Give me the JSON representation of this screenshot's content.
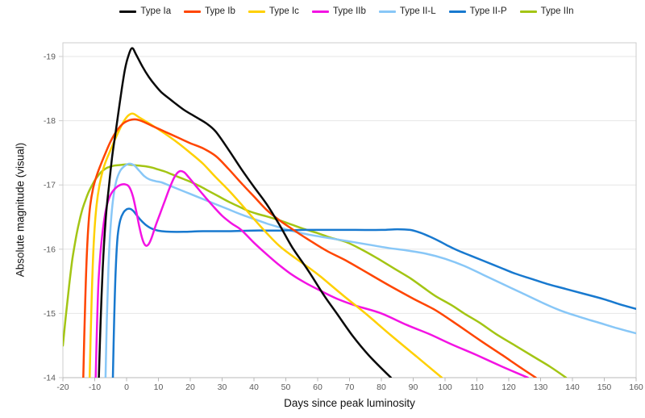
{
  "chart_data": {
    "type": "line",
    "title": "",
    "xlabel": "Days since peak luminosity",
    "ylabel": "Absolute magnitude (visual)",
    "xlim": [
      -20,
      160
    ],
    "ylim": [
      -14,
      -19.2
    ],
    "y_inverted": true,
    "grid": "horizontal-only",
    "legend_position": "top-center",
    "x_ticks": [
      -20,
      -10,
      0,
      10,
      20,
      30,
      40,
      50,
      60,
      70,
      80,
      90,
      100,
      110,
      120,
      130,
      140,
      150,
      160
    ],
    "y_ticks": [
      -19,
      -18,
      -17,
      -16,
      -15,
      -14
    ],
    "style": {
      "grid_color": "#e6e6e6",
      "border_color": "#cdcdcd",
      "axis_color": "#b9b9b9",
      "tick_label_color": "#5a5a5a",
      "line_width": 2.5
    },
    "draw_order": [
      6,
      4,
      5,
      3,
      2,
      1,
      0
    ],
    "series": [
      {
        "name": "Type Ia",
        "color": "#0a0a0a",
        "points": [
          [
            -8.7,
            -14
          ],
          [
            -8.2,
            -14.8
          ],
          [
            -7.5,
            -15.7
          ],
          [
            -6.5,
            -16.5
          ],
          [
            -5.5,
            -17.0
          ],
          [
            -4.5,
            -17.45
          ],
          [
            -3.5,
            -17.8
          ],
          [
            -2.5,
            -18.15
          ],
          [
            -1.5,
            -18.5
          ],
          [
            -0.5,
            -18.8
          ],
          [
            0.5,
            -19.0
          ],
          [
            1.7,
            -19.13
          ],
          [
            3,
            -19.03
          ],
          [
            5,
            -18.84
          ],
          [
            7,
            -18.68
          ],
          [
            9,
            -18.55
          ],
          [
            11,
            -18.44
          ],
          [
            14,
            -18.32
          ],
          [
            18,
            -18.17
          ],
          [
            22,
            -18.05
          ],
          [
            25,
            -17.96
          ],
          [
            28,
            -17.83
          ],
          [
            32,
            -17.55
          ],
          [
            36,
            -17.25
          ],
          [
            40,
            -16.97
          ],
          [
            44,
            -16.7
          ],
          [
            48,
            -16.38
          ],
          [
            52,
            -16.03
          ],
          [
            57,
            -15.67
          ],
          [
            62,
            -15.28
          ],
          [
            66,
            -15.0
          ],
          [
            71,
            -14.65
          ],
          [
            76,
            -14.35
          ],
          [
            83,
            -14.0
          ]
        ]
      },
      {
        "name": "Type Ib",
        "color": "#ff4500",
        "points": [
          [
            -13.6,
            -14
          ],
          [
            -13.1,
            -15.0
          ],
          [
            -12.4,
            -16.0
          ],
          [
            -11.6,
            -16.6
          ],
          [
            -10.5,
            -16.95
          ],
          [
            -9,
            -17.2
          ],
          [
            -7,
            -17.45
          ],
          [
            -5,
            -17.68
          ],
          [
            -3,
            -17.85
          ],
          [
            -1,
            -17.96
          ],
          [
            1,
            -18.01
          ],
          [
            3,
            -18.02
          ],
          [
            5,
            -17.99
          ],
          [
            8,
            -17.92
          ],
          [
            12,
            -17.83
          ],
          [
            16,
            -17.74
          ],
          [
            20,
            -17.65
          ],
          [
            24,
            -17.57
          ],
          [
            28,
            -17.45
          ],
          [
            32,
            -17.25
          ],
          [
            36,
            -17.03
          ],
          [
            40,
            -16.82
          ],
          [
            44,
            -16.61
          ],
          [
            48,
            -16.45
          ],
          [
            53,
            -16.28
          ],
          [
            58,
            -16.12
          ],
          [
            63,
            -15.97
          ],
          [
            69,
            -15.82
          ],
          [
            76,
            -15.62
          ],
          [
            83,
            -15.42
          ],
          [
            90,
            -15.23
          ],
          [
            97,
            -15.05
          ],
          [
            104,
            -14.82
          ],
          [
            111,
            -14.58
          ],
          [
            118,
            -14.35
          ],
          [
            123,
            -14.18
          ],
          [
            128.5,
            -14.0
          ]
        ]
      },
      {
        "name": "Type Ic",
        "color": "#ffd000",
        "points": [
          [
            -11.6,
            -14
          ],
          [
            -11.1,
            -15.0
          ],
          [
            -10.4,
            -16.0
          ],
          [
            -9.6,
            -16.6
          ],
          [
            -8.5,
            -17.0
          ],
          [
            -7,
            -17.3
          ],
          [
            -5,
            -17.55
          ],
          [
            -3,
            -17.78
          ],
          [
            -1,
            -17.98
          ],
          [
            0.5,
            -18.08
          ],
          [
            2,
            -18.11
          ],
          [
            4,
            -18.05
          ],
          [
            8,
            -17.93
          ],
          [
            12,
            -17.8
          ],
          [
            16,
            -17.66
          ],
          [
            20,
            -17.5
          ],
          [
            24,
            -17.33
          ],
          [
            28,
            -17.12
          ],
          [
            32,
            -16.92
          ],
          [
            36,
            -16.7
          ],
          [
            40,
            -16.47
          ],
          [
            44,
            -16.25
          ],
          [
            48,
            -16.05
          ],
          [
            53,
            -15.86
          ],
          [
            57,
            -15.72
          ],
          [
            61,
            -15.57
          ],
          [
            68,
            -15.28
          ],
          [
            75,
            -15.0
          ],
          [
            83,
            -14.66
          ],
          [
            91,
            -14.33
          ],
          [
            99,
            -14.0
          ]
        ]
      },
      {
        "name": "Type IIb",
        "color": "#f313e3",
        "points": [
          [
            -9.7,
            -14
          ],
          [
            -9.3,
            -14.8
          ],
          [
            -8.8,
            -15.5
          ],
          [
            -8.1,
            -16.0
          ],
          [
            -7.2,
            -16.4
          ],
          [
            -6.2,
            -16.68
          ],
          [
            -5,
            -16.85
          ],
          [
            -3.5,
            -16.95
          ],
          [
            -2,
            -17.0
          ],
          [
            -0.5,
            -17.01
          ],
          [
            0.8,
            -16.97
          ],
          [
            2,
            -16.82
          ],
          [
            3,
            -16.6
          ],
          [
            4,
            -16.35
          ],
          [
            5,
            -16.15
          ],
          [
            5.9,
            -16.06
          ],
          [
            6.8,
            -16.07
          ],
          [
            7.8,
            -16.17
          ],
          [
            9,
            -16.35
          ],
          [
            10.5,
            -16.55
          ],
          [
            12,
            -16.75
          ],
          [
            13.5,
            -16.95
          ],
          [
            15,
            -17.12
          ],
          [
            16.5,
            -17.21
          ],
          [
            18,
            -17.2
          ],
          [
            19.5,
            -17.12
          ],
          [
            21.5,
            -17.0
          ],
          [
            24,
            -16.85
          ],
          [
            27,
            -16.68
          ],
          [
            30,
            -16.52
          ],
          [
            33,
            -16.4
          ],
          [
            36,
            -16.3
          ],
          [
            40,
            -16.1
          ],
          [
            44,
            -15.92
          ],
          [
            48,
            -15.75
          ],
          [
            52,
            -15.6
          ],
          [
            56,
            -15.48
          ],
          [
            61,
            -15.35
          ],
          [
            66,
            -15.23
          ],
          [
            72,
            -15.12
          ],
          [
            80,
            -15.0
          ],
          [
            88,
            -14.82
          ],
          [
            95,
            -14.68
          ],
          [
            102,
            -14.52
          ],
          [
            110,
            -14.35
          ],
          [
            118,
            -14.17
          ],
          [
            126,
            -14.0
          ]
        ]
      },
      {
        "name": "Type II-L",
        "color": "#88c7f7",
        "points": [
          [
            -6.6,
            -14
          ],
          [
            -6.2,
            -14.9
          ],
          [
            -5.7,
            -15.7
          ],
          [
            -5.1,
            -16.3
          ],
          [
            -4.3,
            -16.75
          ],
          [
            -3.3,
            -17.05
          ],
          [
            -2,
            -17.22
          ],
          [
            -0.5,
            -17.3
          ],
          [
            1,
            -17.33
          ],
          [
            2.5,
            -17.3
          ],
          [
            4,
            -17.22
          ],
          [
            5.5,
            -17.14
          ],
          [
            7,
            -17.09
          ],
          [
            9,
            -17.06
          ],
          [
            11,
            -17.04
          ],
          [
            13,
            -17.0
          ],
          [
            16,
            -16.94
          ],
          [
            20,
            -16.86
          ],
          [
            24,
            -16.78
          ],
          [
            28,
            -16.7
          ],
          [
            32,
            -16.62
          ],
          [
            36,
            -16.54
          ],
          [
            40,
            -16.47
          ],
          [
            44,
            -16.4
          ],
          [
            48,
            -16.34
          ],
          [
            53,
            -16.27
          ],
          [
            58,
            -16.22
          ],
          [
            64,
            -16.17
          ],
          [
            70,
            -16.12
          ],
          [
            76,
            -16.07
          ],
          [
            82,
            -16.02
          ],
          [
            88,
            -15.98
          ],
          [
            94,
            -15.93
          ],
          [
            100,
            -15.85
          ],
          [
            106,
            -15.74
          ],
          [
            112,
            -15.6
          ],
          [
            118,
            -15.46
          ],
          [
            124,
            -15.32
          ],
          [
            130,
            -15.18
          ],
          [
            136,
            -15.05
          ],
          [
            142,
            -14.95
          ],
          [
            148,
            -14.86
          ],
          [
            154,
            -14.77
          ],
          [
            160,
            -14.69
          ]
        ]
      },
      {
        "name": "Type II-P",
        "color": "#1879cf",
        "points": [
          [
            -4.3,
            -14
          ],
          [
            -3.9,
            -14.9
          ],
          [
            -3.4,
            -15.7
          ],
          [
            -2.8,
            -16.2
          ],
          [
            -2,
            -16.45
          ],
          [
            -1,
            -16.57
          ],
          [
            0,
            -16.62
          ],
          [
            1,
            -16.63
          ],
          [
            2,
            -16.6
          ],
          [
            3,
            -16.54
          ],
          [
            4.5,
            -16.45
          ],
          [
            6,
            -16.38
          ],
          [
            7.5,
            -16.33
          ],
          [
            9,
            -16.3
          ],
          [
            11,
            -16.28
          ],
          [
            14,
            -16.27
          ],
          [
            18,
            -16.27
          ],
          [
            24,
            -16.28
          ],
          [
            32,
            -16.28
          ],
          [
            40,
            -16.29
          ],
          [
            48,
            -16.29
          ],
          [
            56,
            -16.3
          ],
          [
            64,
            -16.3
          ],
          [
            72,
            -16.3
          ],
          [
            80,
            -16.3
          ],
          [
            85,
            -16.31
          ],
          [
            89,
            -16.3
          ],
          [
            92,
            -16.26
          ],
          [
            95,
            -16.2
          ],
          [
            98,
            -16.13
          ],
          [
            101,
            -16.05
          ],
          [
            104,
            -15.98
          ],
          [
            108,
            -15.9
          ],
          [
            112,
            -15.82
          ],
          [
            117,
            -15.72
          ],
          [
            122,
            -15.62
          ],
          [
            127,
            -15.54
          ],
          [
            132,
            -15.46
          ],
          [
            138,
            -15.38
          ],
          [
            144,
            -15.3
          ],
          [
            150,
            -15.22
          ],
          [
            155,
            -15.14
          ],
          [
            160,
            -15.07
          ]
        ]
      },
      {
        "name": "Type IIn",
        "color": "#a3c514",
        "points": [
          [
            -20,
            -14.5
          ],
          [
            -19,
            -15.0
          ],
          [
            -18,
            -15.45
          ],
          [
            -17,
            -15.85
          ],
          [
            -16,
            -16.15
          ],
          [
            -15,
            -16.4
          ],
          [
            -14,
            -16.6
          ],
          [
            -13,
            -16.75
          ],
          [
            -12,
            -16.88
          ],
          [
            -11,
            -16.98
          ],
          [
            -10,
            -17.07
          ],
          [
            -9,
            -17.14
          ],
          [
            -8,
            -17.2
          ],
          [
            -7,
            -17.24
          ],
          [
            -6,
            -17.27
          ],
          [
            -4,
            -17.3
          ],
          [
            -2,
            -17.31
          ],
          [
            0,
            -17.32
          ],
          [
            2,
            -17.31
          ],
          [
            4,
            -17.3
          ],
          [
            6,
            -17.29
          ],
          [
            8,
            -17.27
          ],
          [
            10,
            -17.24
          ],
          [
            12,
            -17.21
          ],
          [
            14,
            -17.17
          ],
          [
            16,
            -17.13
          ],
          [
            18,
            -17.09
          ],
          [
            20,
            -17.05
          ],
          [
            23,
            -16.98
          ],
          [
            26,
            -16.9
          ],
          [
            29,
            -16.82
          ],
          [
            32,
            -16.74
          ],
          [
            35,
            -16.67
          ],
          [
            38,
            -16.6
          ],
          [
            41,
            -16.55
          ],
          [
            44,
            -16.51
          ],
          [
            48,
            -16.45
          ],
          [
            52,
            -16.38
          ],
          [
            56,
            -16.31
          ],
          [
            60,
            -16.25
          ],
          [
            64,
            -16.18
          ],
          [
            69,
            -16.11
          ],
          [
            74,
            -15.99
          ],
          [
            79,
            -15.85
          ],
          [
            84,
            -15.7
          ],
          [
            89,
            -15.55
          ],
          [
            93,
            -15.41
          ],
          [
            97,
            -15.27
          ],
          [
            102,
            -15.13
          ],
          [
            106,
            -15.0
          ],
          [
            111,
            -14.85
          ],
          [
            116,
            -14.68
          ],
          [
            122,
            -14.5
          ],
          [
            128,
            -14.32
          ],
          [
            133,
            -14.17
          ],
          [
            138,
            -14.0
          ]
        ]
      }
    ]
  }
}
